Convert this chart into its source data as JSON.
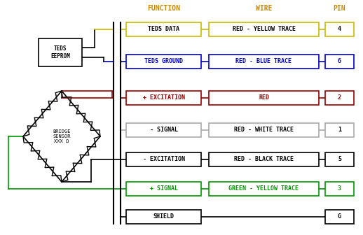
{
  "background_color": "#ffffff",
  "figsize": [
    5.18,
    3.36
  ],
  "dpi": 100,
  "header": {
    "function_label": "FUNCTION",
    "wire_label": "WIRE",
    "pin_label": "PIN",
    "color": "#cc8800"
  },
  "rows": [
    {
      "label": "TEDS DATA",
      "wire": "RED - YELLOW TRACE",
      "pin": "4",
      "border_color": "#ccbb00",
      "text_color": "#000000",
      "line_color": "#ccbb00",
      "pin_text_color": "#000000"
    },
    {
      "label": "TEDS GROUND",
      "wire": "RED - BLUE TRACE",
      "pin": "6",
      "border_color": "#0000cc",
      "text_color": "#0000cc",
      "line_color": "#0000cc",
      "pin_text_color": "#0000cc"
    },
    {
      "label": "+ EXCITATION",
      "wire": "RED",
      "pin": "2",
      "border_color": "#990000",
      "text_color": "#990000",
      "line_color": "#990000",
      "pin_text_color": "#990000"
    },
    {
      "label": "- SIGNAL",
      "wire": "RED - WHITE TRACE",
      "pin": "1",
      "border_color": "#aaaaaa",
      "text_color": "#000000",
      "line_color": "#aaaaaa",
      "pin_text_color": "#000000"
    },
    {
      "label": "- EXCITATION",
      "wire": "RED - BLACK TRACE",
      "pin": "5",
      "border_color": "#000000",
      "text_color": "#000000",
      "line_color": "#000000",
      "pin_text_color": "#000000"
    },
    {
      "label": "+ SIGNAL",
      "wire": "GREEN - YELLOW TRACE",
      "pin": "3",
      "border_color": "#009900",
      "text_color": "#009900",
      "line_color": "#009900",
      "pin_text_color": "#009900"
    },
    {
      "label": "SHIELD",
      "wire": "",
      "pin": "G",
      "border_color": "#000000",
      "text_color": "#000000",
      "line_color": "#000000",
      "pin_text_color": "#000000"
    }
  ]
}
